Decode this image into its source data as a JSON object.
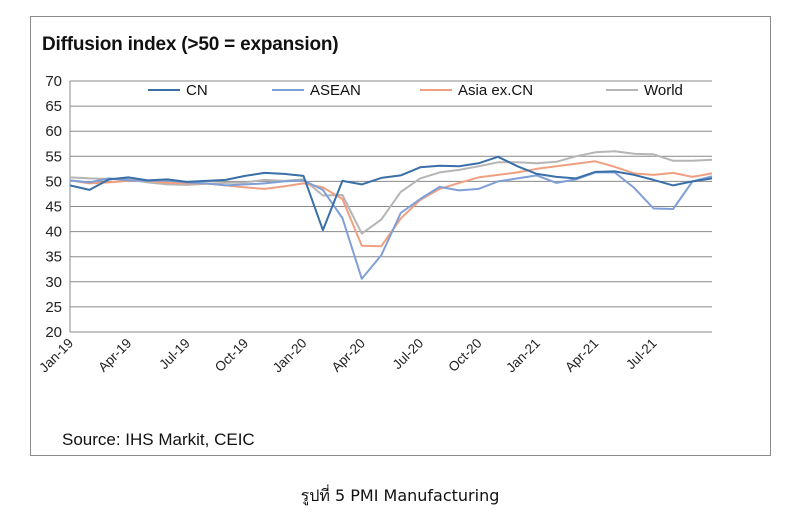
{
  "chart_data": {
    "type": "line",
    "title": "Diffusion index (>50 = expansion)",
    "xlabel": "",
    "ylabel": "",
    "ylim": [
      20,
      70
    ],
    "yticks": [
      20,
      25,
      30,
      35,
      40,
      45,
      50,
      55,
      60,
      65,
      70
    ],
    "grid": true,
    "legend_position": "top",
    "x": [
      "Jan-19",
      "Feb-19",
      "Mar-19",
      "Apr-19",
      "May-19",
      "Jun-19",
      "Jul-19",
      "Aug-19",
      "Sep-19",
      "Oct-19",
      "Nov-19",
      "Dec-19",
      "Jan-20",
      "Feb-20",
      "Mar-20",
      "Apr-20",
      "May-20",
      "Jun-20",
      "Jul-20",
      "Aug-20",
      "Sep-20",
      "Oct-20",
      "Nov-20",
      "Dec-20",
      "Jan-21",
      "Feb-21",
      "Mar-21",
      "Apr-21",
      "May-21",
      "Jun-21",
      "Jul-21",
      "Aug-21",
      "Sep-21",
      "Oct-21"
    ],
    "xtick_labels": [
      "Jan-19",
      "Apr-19",
      "Jul-19",
      "Oct-19",
      "Jan-20",
      "Apr-20",
      "Jul-20",
      "Oct-20",
      "Jan-21",
      "Apr-21",
      "Jul-21"
    ],
    "series": [
      {
        "name": "CN",
        "color": "#3a6fa8",
        "values": [
          49.2,
          48.3,
          50.4,
          50.8,
          50.2,
          50.4,
          49.9,
          50.1,
          50.3,
          51.1,
          51.7,
          51.5,
          51.1,
          40.3,
          50.1,
          49.4,
          50.7,
          51.2,
          52.8,
          53.1,
          53.0,
          53.6,
          54.9,
          53.0,
          51.5,
          50.9,
          50.6,
          51.9,
          52.0,
          51.3,
          50.3,
          49.2,
          50.0,
          50.6
        ]
      },
      {
        "name": "ASEAN",
        "color": "#7f9fd6",
        "values": [
          50.2,
          49.8,
          50.6,
          50.2,
          50.1,
          50.2,
          49.8,
          49.6,
          49.2,
          49.4,
          49.6,
          50.0,
          50.2,
          48.3,
          42.7,
          30.6,
          35.3,
          43.7,
          46.5,
          48.9,
          48.2,
          48.5,
          50.0,
          50.6,
          51.2,
          49.7,
          50.4,
          51.8,
          51.8,
          48.7,
          44.6,
          44.5,
          50.0,
          51.0
        ]
      },
      {
        "name": "Asia ex.CN",
        "color": "#f0a080",
        "values": [
          50.2,
          49.6,
          49.8,
          50.1,
          50.1,
          49.7,
          49.6,
          49.6,
          49.2,
          48.8,
          48.5,
          49.0,
          49.6,
          48.8,
          46.5,
          37.2,
          37.1,
          42.6,
          46.3,
          48.5,
          49.7,
          50.8,
          51.3,
          51.8,
          52.5,
          53.0,
          53.5,
          54.0,
          52.9,
          51.6,
          51.3,
          51.7,
          50.9,
          51.6
        ]
      },
      {
        "name": "World",
        "color": "#b5b5b5",
        "values": [
          50.8,
          50.6,
          50.5,
          50.4,
          49.8,
          49.4,
          49.3,
          49.5,
          49.7,
          49.8,
          50.3,
          50.1,
          50.4,
          47.2,
          47.3,
          39.6,
          42.4,
          47.9,
          50.6,
          51.8,
          52.3,
          53.0,
          53.8,
          53.8,
          53.6,
          53.9,
          55.0,
          55.8,
          56.0,
          55.5,
          55.4,
          54.1,
          54.1,
          54.3
        ]
      }
    ]
  },
  "source_text": "Source: IHS Markit, CEIC",
  "caption_text": "รูปที่ 5 PMI Manufacturing"
}
